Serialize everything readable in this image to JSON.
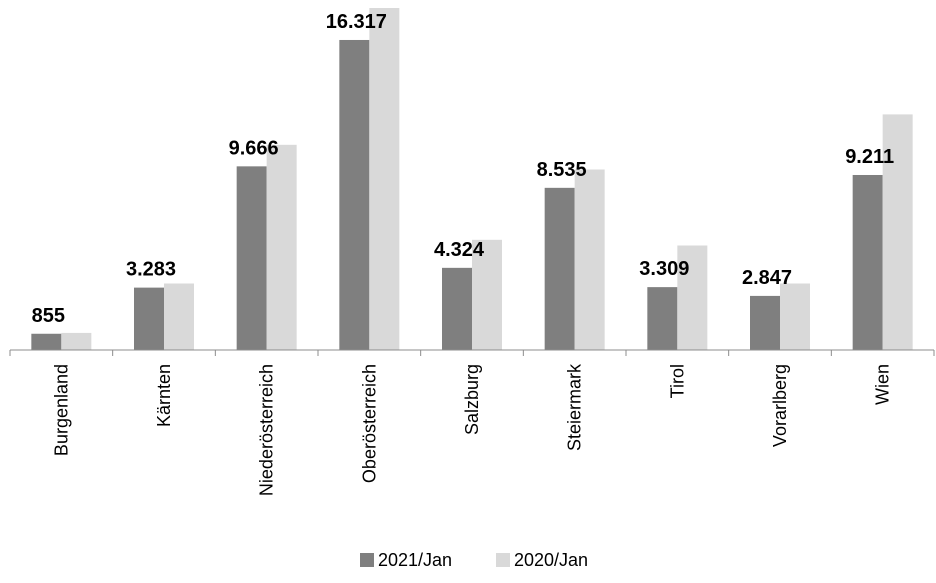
{
  "chart_data": {
    "type": "bar",
    "title": "",
    "xlabel": "",
    "ylabel": "",
    "categories": [
      "Burgenland",
      "Kärnten",
      "Niederösterreich",
      "Oberösterreich",
      "Salzburg",
      "Steiermark",
      "Tirol",
      "Vorarlberg",
      "Wien"
    ],
    "series": [
      {
        "name": "2021/Jan",
        "color": "#7f7f7f",
        "values": [
          855,
          3283,
          9666,
          16317,
          4324,
          8535,
          3309,
          2847,
          9211
        ],
        "labels": [
          "855",
          "3.283",
          "9.666",
          "16.317",
          "4.324",
          "8.535",
          "3.309",
          "2.847",
          "9.211"
        ]
      },
      {
        "name": "2020/Jan",
        "color": "#d9d9d9",
        "values": [
          900,
          3500,
          10800,
          18000,
          5800,
          9500,
          5500,
          3500,
          12400
        ]
      }
    ],
    "ylim": [
      0,
      18000
    ],
    "grid": false,
    "legend": "bottom"
  }
}
